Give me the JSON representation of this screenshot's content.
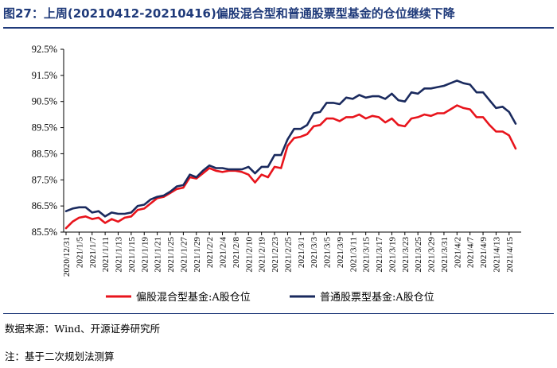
{
  "title": "图27：上周(20210412-20210416)偏股混合型和普通股票型基金的仓位继续下降",
  "source": "数据来源：Wind、开源证券研究所",
  "note": "注：基于二次规划法测算",
  "colors": {
    "series1": "#e8141c",
    "series2": "#1a2a5e",
    "title": "#1f3a7a",
    "axis": "#000000"
  },
  "chart_data": {
    "type": "line",
    "ylim": [
      85.5,
      92.5
    ],
    "yticks": [
      "85.5%",
      "86.5%",
      "87.5%",
      "88.5%",
      "89.5%",
      "90.5%",
      "91.5%",
      "92.5%"
    ],
    "ytick_values": [
      85.5,
      86.5,
      87.5,
      88.5,
      89.5,
      90.5,
      91.5,
      92.5
    ],
    "grid": false,
    "legend": "bottom",
    "xtick_labels": [
      "2020/12/31",
      "2021/1/5",
      "2021/1/7",
      "2021/1/11",
      "2021/1/13",
      "2021/1/15",
      "2021/1/19",
      "2021/1/21",
      "2021/1/25",
      "2021/1/27",
      "2021/1/29",
      "2021/2/2",
      "2021/2/4",
      "2021/2/8",
      "2021/2/10",
      "2021/2/19",
      "2021/2/23",
      "2021/2/25",
      "2021/3/1",
      "2021/3/3",
      "2021/3/5",
      "2021/3/9",
      "2021/3/11",
      "2021/3/15",
      "2021/3/17",
      "2021/3/19",
      "2021/3/23",
      "2021/3/25",
      "2021/3/29",
      "2021/3/31",
      "2021/4/2",
      "2021/4/7",
      "2021/4/9",
      "2021/4/13",
      "2021/4/15"
    ],
    "x": [
      "2020/12/31",
      "2021/1/4",
      "2021/1/5",
      "2021/1/6",
      "2021/1/7",
      "2021/1/8",
      "2021/1/11",
      "2021/1/12",
      "2021/1/13",
      "2021/1/14",
      "2021/1/15",
      "2021/1/18",
      "2021/1/19",
      "2021/1/20",
      "2021/1/21",
      "2021/1/22",
      "2021/1/25",
      "2021/1/26",
      "2021/1/27",
      "2021/1/28",
      "2021/1/29",
      "2021/2/1",
      "2021/2/2",
      "2021/2/3",
      "2021/2/4",
      "2021/2/5",
      "2021/2/8",
      "2021/2/9",
      "2021/2/10",
      "2021/2/18",
      "2021/2/19",
      "2021/2/22",
      "2021/2/23",
      "2021/2/24",
      "2021/2/25",
      "2021/2/26",
      "2021/3/1",
      "2021/3/2",
      "2021/3/3",
      "2021/3/4",
      "2021/3/5",
      "2021/3/8",
      "2021/3/9",
      "2021/3/10",
      "2021/3/11",
      "2021/3/12",
      "2021/3/15",
      "2021/3/16",
      "2021/3/17",
      "2021/3/18",
      "2021/3/19",
      "2021/3/22",
      "2021/3/23",
      "2021/3/24",
      "2021/3/25",
      "2021/3/26",
      "2021/3/29",
      "2021/3/30",
      "2021/3/31",
      "2021/4/1",
      "2021/4/2",
      "2021/4/6",
      "2021/4/7",
      "2021/4/8",
      "2021/4/9",
      "2021/4/12",
      "2021/4/13",
      "2021/4/14",
      "2021/4/15",
      "2021/4/16"
    ],
    "series": [
      {
        "name": "偏股混合型基金:A股仓位",
        "values": [
          85.65,
          85.9,
          86.05,
          86.1,
          86.0,
          86.05,
          85.85,
          86.0,
          85.9,
          86.05,
          86.1,
          86.35,
          86.4,
          86.6,
          86.8,
          86.85,
          87.0,
          87.15,
          87.2,
          87.6,
          87.55,
          87.75,
          87.95,
          87.85,
          87.8,
          87.85,
          87.85,
          87.8,
          87.7,
          87.4,
          87.7,
          87.6,
          88.0,
          87.95,
          88.8,
          89.1,
          89.15,
          89.25,
          89.55,
          89.6,
          89.85,
          89.85,
          89.75,
          89.9,
          89.9,
          90.0,
          89.85,
          89.95,
          89.9,
          89.7,
          89.85,
          89.6,
          89.55,
          89.85,
          89.9,
          90.0,
          89.95,
          90.05,
          90.05,
          90.2,
          90.35,
          90.25,
          90.2,
          89.9,
          89.9,
          89.6,
          89.35,
          89.35,
          89.2,
          88.7
        ]
      },
      {
        "name": "普通股票型基金:A股仓位",
        "values": [
          86.3,
          86.4,
          86.45,
          86.45,
          86.25,
          86.3,
          86.1,
          86.25,
          86.2,
          86.2,
          86.25,
          86.5,
          86.55,
          86.75,
          86.85,
          86.9,
          87.05,
          87.25,
          87.3,
          87.7,
          87.6,
          87.85,
          88.05,
          87.95,
          87.95,
          87.9,
          87.9,
          87.9,
          88.0,
          87.75,
          88.0,
          88.0,
          88.45,
          88.45,
          89.05,
          89.45,
          89.45,
          89.6,
          90.05,
          90.1,
          90.45,
          90.45,
          90.4,
          90.65,
          90.6,
          90.75,
          90.65,
          90.7,
          90.7,
          90.6,
          90.8,
          90.55,
          90.5,
          90.85,
          90.8,
          91.0,
          91.0,
          91.05,
          91.1,
          91.2,
          91.3,
          91.2,
          91.15,
          90.85,
          90.85,
          90.55,
          90.25,
          90.3,
          90.1,
          89.65
        ]
      }
    ]
  }
}
